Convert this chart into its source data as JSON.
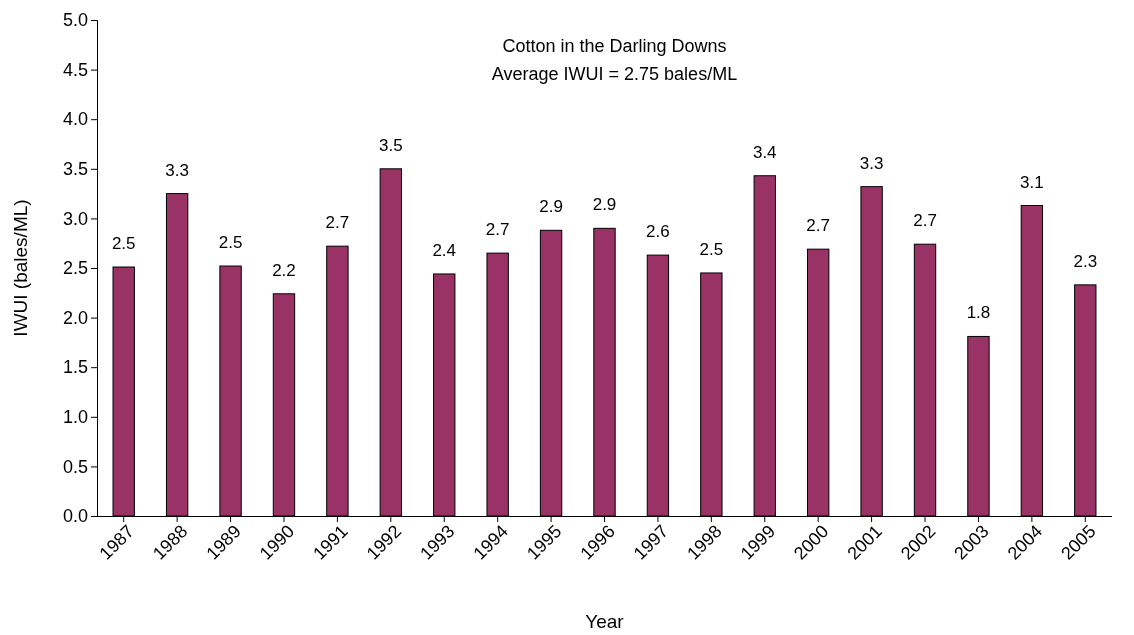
{
  "chart_data": {
    "type": "bar",
    "title": "Cotton in the Darling Downs",
    "subtitle": "Average IWUI = 2.75 bales/ML",
    "xlabel": "Year",
    "ylabel": "IWUI (bales/ML)",
    "categories": [
      "1987",
      "1988",
      "1989",
      "1990",
      "1991",
      "1992",
      "1993",
      "1994",
      "1995",
      "1996",
      "1997",
      "1998",
      "1999",
      "2000",
      "2001",
      "2002",
      "2003",
      "2004",
      "2005"
    ],
    "values": [
      2.51,
      3.25,
      2.52,
      2.24,
      2.72,
      3.5,
      2.44,
      2.65,
      2.88,
      2.9,
      2.63,
      2.45,
      3.43,
      2.69,
      3.32,
      2.74,
      1.81,
      3.13,
      2.33
    ],
    "value_labels": [
      "2.5",
      "3.3",
      "2.5",
      "2.2",
      "2.7",
      "3.5",
      "2.4",
      "2.7",
      "2.9",
      "2.9",
      "2.6",
      "2.5",
      "3.4",
      "2.7",
      "3.3",
      "2.7",
      "1.8",
      "3.1",
      "2.3"
    ],
    "color": "#993366",
    "ylim": [
      0,
      5
    ],
    "yticks": [
      {
        "value": 0,
        "label": "0.0"
      },
      {
        "value": 0.5,
        "label": "0.5"
      },
      {
        "value": 1,
        "label": "1.0"
      },
      {
        "value": 1.5,
        "label": "1.5"
      },
      {
        "value": 2,
        "label": "2.0"
      },
      {
        "value": 2.5,
        "label": "2.5"
      },
      {
        "value": 3,
        "label": "3.0"
      },
      {
        "value": 3.5,
        "label": "3.5"
      },
      {
        "value": 4,
        "label": "4.0"
      },
      {
        "value": 4.5,
        "label": "4.5"
      },
      {
        "value": 5,
        "label": "5.0"
      }
    ],
    "grid": false
  }
}
